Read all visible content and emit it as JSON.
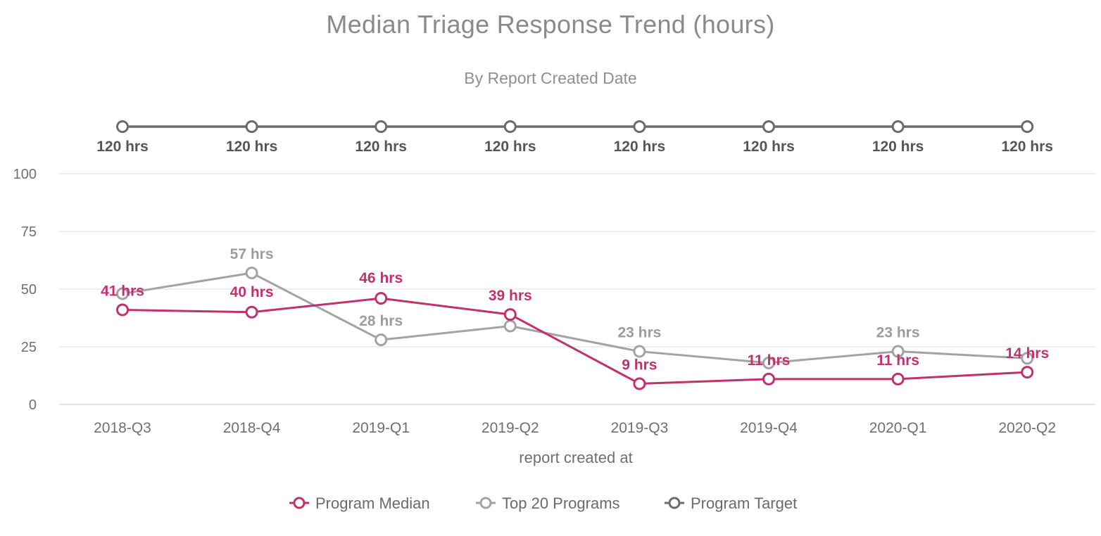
{
  "chart_data": {
    "type": "line",
    "title": "Median Triage Response Trend (hours)",
    "subtitle": "By Report Created Date",
    "xlabel": "report created at",
    "ylabel": "",
    "categories": [
      "2018-Q3",
      "2018-Q4",
      "2019-Q1",
      "2019-Q2",
      "2019-Q3",
      "2019-Q4",
      "2020-Q1",
      "2020-Q2"
    ],
    "ylim": [
      0,
      100
    ],
    "yticks": [
      "0",
      "25",
      "50",
      "75",
      "100"
    ],
    "grid": true,
    "legend_position": "bottom",
    "series": [
      {
        "name": "Program Median",
        "color": "#c2306d",
        "values": [
          41,
          40,
          46,
          39,
          9,
          11,
          11,
          14
        ],
        "labels": [
          "41 hrs",
          "40 hrs",
          "46 hrs",
          "39 hrs",
          "9 hrs",
          "11 hrs",
          "11 hrs",
          "14 hrs"
        ]
      },
      {
        "name": "Top 20 Programs",
        "color": "#a3a3a3",
        "values": [
          48,
          57,
          28,
          34,
          23,
          18,
          23,
          20
        ],
        "labels": [
          "",
          "57 hrs",
          "28 hrs",
          "",
          "23 hrs",
          "",
          "23 hrs",
          ""
        ]
      },
      {
        "name": "Program Target",
        "color": "#6b6b6b",
        "values": [
          120,
          120,
          120,
          120,
          120,
          120,
          120,
          120
        ],
        "labels": [
          "120 hrs",
          "120 hrs",
          "120 hrs",
          "120 hrs",
          "120 hrs",
          "120 hrs",
          "120 hrs",
          "120 hrs"
        ]
      }
    ]
  }
}
